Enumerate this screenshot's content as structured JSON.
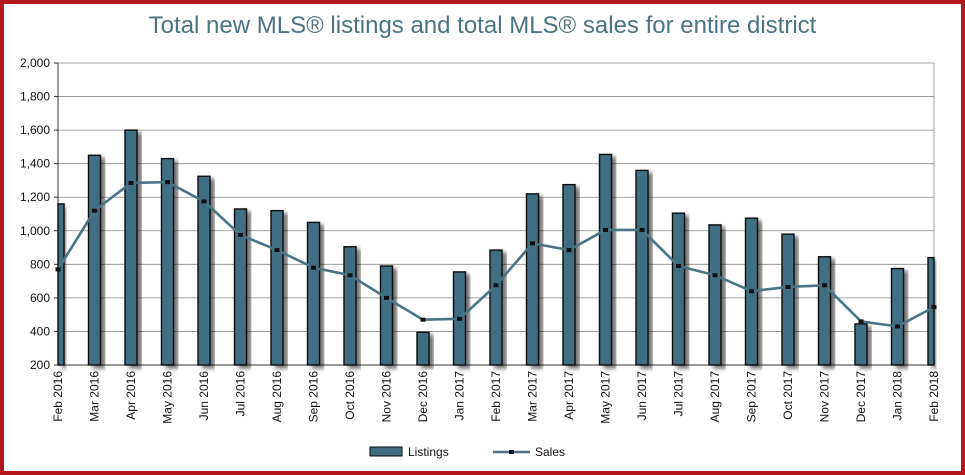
{
  "chart_data": {
    "type": "bar",
    "title": "Total new MLS® listings and total MLS® sales for entire district",
    "categories": [
      "Feb 2016",
      "Mar 2016",
      "Apr 2016",
      "May 2016",
      "Jun 2016",
      "Jul 2016",
      "Aug 2016",
      "Sep 2016",
      "Oct 2016",
      "Nov 2016",
      "Dec 2016",
      "Jan 2017",
      "Feb 2017",
      "Mar 2017",
      "Apr 2017",
      "May 2017",
      "Jun 2017",
      "Jul 2017",
      "Aug 2017",
      "Sep 2017",
      "Oct 2017",
      "Nov 2017",
      "Dec 2017",
      "Jan 2018",
      "Feb 2018"
    ],
    "series": [
      {
        "name": "Listings",
        "kind": "bar",
        "values": [
          1160,
          1450,
          1600,
          1430,
          1325,
          1130,
          1120,
          1050,
          905,
          790,
          395,
          755,
          885,
          1220,
          1275,
          1455,
          1360,
          1105,
          1035,
          1075,
          980,
          845,
          445,
          775,
          840
        ]
      },
      {
        "name": "Sales",
        "kind": "line",
        "values": [
          770,
          1120,
          1285,
          1290,
          1175,
          975,
          885,
          780,
          735,
          600,
          470,
          475,
          675,
          925,
          885,
          1005,
          1005,
          790,
          735,
          640,
          665,
          675,
          460,
          430,
          545
        ]
      }
    ],
    "ylim": [
      200,
      2000
    ],
    "yticks": [
      "200",
      "400",
      "600",
      "800",
      "1,000",
      "1,200",
      "1,400",
      "1,600",
      "1,800",
      "2,000"
    ],
    "grid": true,
    "legend": "bottom-center",
    "colors": {
      "bar": "#3f6e82",
      "bar_edge": "#0b0b0b",
      "line": "#4a7485",
      "marker": "#111111",
      "frame": "#b3191c",
      "title": "#4a7485"
    }
  }
}
